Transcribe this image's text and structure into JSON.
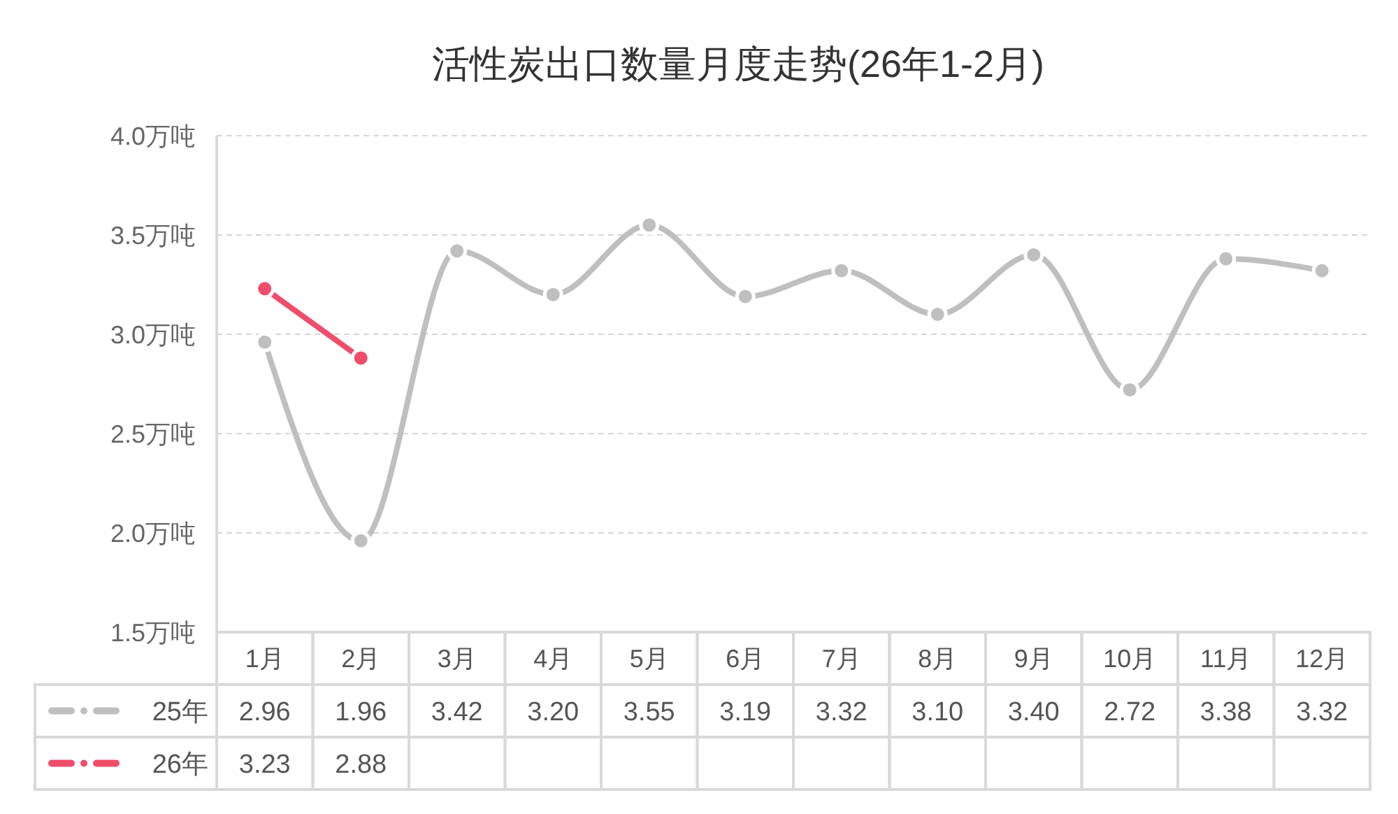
{
  "chart_data": {
    "type": "line",
    "title": "活性炭出口数量月度走势(26年1-2月)",
    "categories": [
      "1月",
      "2月",
      "3月",
      "4月",
      "5月",
      "6月",
      "7月",
      "8月",
      "9月",
      "10月",
      "11月",
      "12月"
    ],
    "series": [
      {
        "name": "25年",
        "color": "#bfbfbf",
        "values": [
          2.96,
          1.96,
          3.42,
          3.2,
          3.55,
          3.19,
          3.32,
          3.1,
          3.4,
          2.72,
          3.38,
          3.32
        ],
        "value_labels": [
          "2.96",
          "1.96",
          "3.42",
          "3.20",
          "3.55",
          "3.19",
          "3.32",
          "3.10",
          "3.40",
          "2.72",
          "3.38",
          "3.32"
        ]
      },
      {
        "name": "26年",
        "color": "#ef4d6a",
        "values": [
          3.23,
          2.88,
          null,
          null,
          null,
          null,
          null,
          null,
          null,
          null,
          null,
          null
        ],
        "value_labels": [
          "3.23",
          "2.88",
          null,
          null,
          null,
          null,
          null,
          null,
          null,
          null,
          null,
          null
        ]
      }
    ],
    "ylim": [
      1.5,
      4.0
    ],
    "yticks": [
      {
        "value": 1.5,
        "label": "1.5万吨"
      },
      {
        "value": 2.0,
        "label": "2.0万吨"
      },
      {
        "value": 2.5,
        "label": "2.5万吨"
      },
      {
        "value": 3.0,
        "label": "3.0万吨"
      },
      {
        "value": 3.5,
        "label": "3.5万吨"
      },
      {
        "value": 4.0,
        "label": "4.0万吨"
      }
    ],
    "grid": "y",
    "marker": "circle",
    "line_style": "solid",
    "legend": "bottom"
  }
}
